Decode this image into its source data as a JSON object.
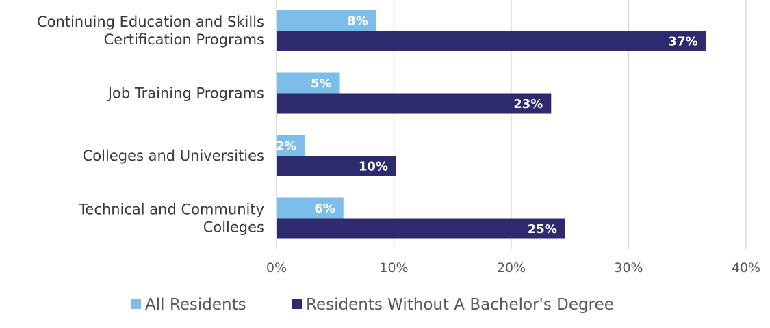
{
  "chart_data": {
    "type": "bar",
    "orientation": "horizontal",
    "title": "",
    "xlabel": "",
    "ylabel": "",
    "xlim": [
      0,
      40
    ],
    "tick_values": [
      0,
      10,
      20,
      30,
      40
    ],
    "tick_labels": [
      "0%",
      "10%",
      "20%",
      "30%",
      "40%"
    ],
    "grid": true,
    "legend_position": "bottom",
    "categories": [
      [
        "Continuing Education and Skills",
        "Certification Programs"
      ],
      [
        "Job Training Programs"
      ],
      [
        "Colleges and Universities"
      ],
      [
        "Technical and Community",
        "Colleges"
      ]
    ],
    "series": [
      {
        "name": "All Residents",
        "color": "#7dbde9",
        "values": [
          8.5,
          5.4,
          2.4,
          5.7
        ],
        "labels": [
          "8%",
          "5%",
          "2%",
          "6%"
        ]
      },
      {
        "name": "Residents Without A Bachelor's Degree",
        "color": "#2d2a6e",
        "values": [
          36.6,
          23.4,
          10.2,
          24.6
        ],
        "labels": [
          "37%",
          "23%",
          "10%",
          "25%"
        ]
      }
    ]
  }
}
